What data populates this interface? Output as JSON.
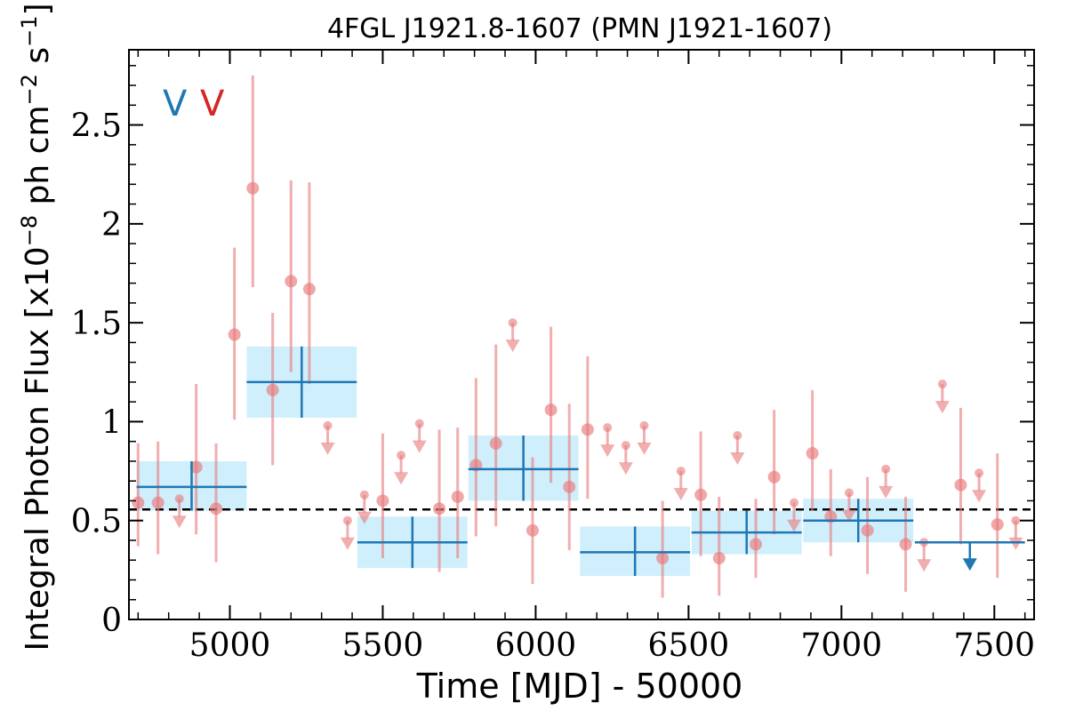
{
  "chart_data": {
    "type": "scatter",
    "title": "4FGL J1921.8-1607 (PMN J1921-1607)",
    "xlabel": "Time [MJD] - 50000",
    "ylabel_main": "Integral Photon Flux [x10",
    "ylabel_exp1": "−8",
    "ylabel_mid": " ph cm",
    "ylabel_exp2": "−2",
    "ylabel_s": " s",
    "ylabel_exp3": "−1",
    "ylabel_end": "]",
    "xlim": [
      4670,
      7630
    ],
    "ylim": [
      0,
      2.88
    ],
    "xticks": [
      {
        "value": 5000,
        "label": "5000"
      },
      {
        "value": 5500,
        "label": "5500"
      },
      {
        "value": 6000,
        "label": "6000"
      },
      {
        "value": 6500,
        "label": "6500"
      },
      {
        "value": 7000,
        "label": "7000"
      },
      {
        "value": 7500,
        "label": "7500"
      }
    ],
    "yticks": [
      {
        "value": 0,
        "label": "0"
      },
      {
        "value": 0.5,
        "label": "0.5"
      },
      {
        "value": 1,
        "label": "1"
      },
      {
        "value": 1.5,
        "label": "1.5"
      },
      {
        "value": 2,
        "label": "2"
      },
      {
        "value": 2.5,
        "label": "2.5"
      }
    ],
    "x_minor_step": 100,
    "y_minor_step": 0.1,
    "mean_flux": 0.556,
    "markers": [
      {
        "label": "V",
        "color": "#1f77b4"
      },
      {
        "label": "V",
        "color": "#d62728"
      }
    ],
    "colors": {
      "fine": "#e8787a",
      "coarse": "#1f77b4",
      "coarse_band": "#cdeefc",
      "mean_line": "#000000"
    },
    "series": [
      {
        "kind": "coarse",
        "points": [
          {
            "x": 4875,
            "xerr": 180,
            "y": 0.67,
            "ylo": 0.55,
            "yhi": 0.8,
            "ul": false
          },
          {
            "x": 5235,
            "xerr": 180,
            "y": 1.2,
            "ylo": 1.02,
            "yhi": 1.38,
            "ul": false
          },
          {
            "x": 5597,
            "xerr": 180,
            "y": 0.39,
            "ylo": 0.26,
            "yhi": 0.52,
            "ul": false
          },
          {
            "x": 5960,
            "xerr": 180,
            "y": 0.76,
            "ylo": 0.6,
            "yhi": 0.93,
            "ul": false
          },
          {
            "x": 6325,
            "xerr": 180,
            "y": 0.34,
            "ylo": 0.22,
            "yhi": 0.47,
            "ul": false
          },
          {
            "x": 6690,
            "xerr": 180,
            "y": 0.44,
            "ylo": 0.33,
            "yhi": 0.55,
            "ul": false
          },
          {
            "x": 7055,
            "xerr": 180,
            "y": 0.5,
            "ylo": 0.39,
            "yhi": 0.61,
            "ul": false
          },
          {
            "x": 7420,
            "xerr": 180,
            "y": 0.39,
            "ylo": null,
            "yhi": null,
            "ul": true
          }
        ]
      },
      {
        "kind": "fine",
        "points": [
          {
            "x": 4700,
            "y": 0.59,
            "ylo": 0.37,
            "yhi": 0.89,
            "ul": false
          },
          {
            "x": 4765,
            "y": 0.59,
            "ylo": 0.33,
            "yhi": 0.9,
            "ul": false
          },
          {
            "x": 4835,
            "y": 0.61,
            "ylo": null,
            "yhi": null,
            "ul": true
          },
          {
            "x": 4890,
            "y": 0.77,
            "ylo": 0.43,
            "yhi": 1.19,
            "ul": false
          },
          {
            "x": 4955,
            "y": 0.56,
            "ylo": 0.29,
            "yhi": 0.89,
            "ul": false
          },
          {
            "x": 5015,
            "y": 1.44,
            "ylo": 1.01,
            "yhi": 1.88,
            "ul": false
          },
          {
            "x": 5075,
            "y": 2.18,
            "ylo": 1.68,
            "yhi": 2.75,
            "ul": false
          },
          {
            "x": 5140,
            "y": 1.16,
            "ylo": 0.78,
            "yhi": 1.55,
            "ul": false
          },
          {
            "x": 5200,
            "y": 1.71,
            "ylo": 1.25,
            "yhi": 2.22,
            "ul": false
          },
          {
            "x": 5260,
            "y": 1.67,
            "ylo": 1.19,
            "yhi": 2.21,
            "ul": false
          },
          {
            "x": 5320,
            "y": 0.98,
            "ylo": null,
            "yhi": null,
            "ul": true
          },
          {
            "x": 5385,
            "y": 0.5,
            "ylo": null,
            "yhi": null,
            "ul": true
          },
          {
            "x": 5440,
            "y": 0.63,
            "ylo": null,
            "yhi": null,
            "ul": true
          },
          {
            "x": 5500,
            "y": 0.6,
            "ylo": 0.31,
            "yhi": 0.94,
            "ul": false
          },
          {
            "x": 5560,
            "y": 0.83,
            "ylo": null,
            "yhi": null,
            "ul": true
          },
          {
            "x": 5620,
            "y": 0.99,
            "ylo": null,
            "yhi": null,
            "ul": true
          },
          {
            "x": 5685,
            "y": 0.56,
            "ylo": 0.24,
            "yhi": 0.96,
            "ul": false
          },
          {
            "x": 5745,
            "y": 0.62,
            "ylo": 0.31,
            "yhi": 0.97,
            "ul": false
          },
          {
            "x": 5805,
            "y": 0.78,
            "ylo": 0.42,
            "yhi": 1.22,
            "ul": false
          },
          {
            "x": 5870,
            "y": 0.89,
            "ylo": 0.47,
            "yhi": 1.39,
            "ul": false
          },
          {
            "x": 5925,
            "y": 1.5,
            "ylo": null,
            "yhi": null,
            "ul": true
          },
          {
            "x": 5990,
            "y": 0.45,
            "ylo": 0.18,
            "yhi": 0.82,
            "ul": false
          },
          {
            "x": 6050,
            "y": 1.06,
            "ylo": 0.69,
            "yhi": 1.48,
            "ul": false
          },
          {
            "x": 6110,
            "y": 0.67,
            "ylo": 0.35,
            "yhi": 1.09,
            "ul": false
          },
          {
            "x": 6170,
            "y": 0.96,
            "ylo": 0.61,
            "yhi": 1.33,
            "ul": false
          },
          {
            "x": 6235,
            "y": 0.97,
            "ylo": null,
            "yhi": null,
            "ul": true
          },
          {
            "x": 6295,
            "y": 0.88,
            "ylo": null,
            "yhi": null,
            "ul": true
          },
          {
            "x": 6355,
            "y": 0.98,
            "ylo": null,
            "yhi": null,
            "ul": true
          },
          {
            "x": 6415,
            "y": 0.31,
            "ylo": 0.11,
            "yhi": 0.6,
            "ul": false
          },
          {
            "x": 6475,
            "y": 0.75,
            "ylo": null,
            "yhi": null,
            "ul": true
          },
          {
            "x": 6540,
            "y": 0.63,
            "ylo": 0.32,
            "yhi": 0.95,
            "ul": false
          },
          {
            "x": 6600,
            "y": 0.31,
            "ylo": 0.12,
            "yhi": 0.62,
            "ul": false
          },
          {
            "x": 6660,
            "y": 0.93,
            "ylo": null,
            "yhi": null,
            "ul": true
          },
          {
            "x": 6720,
            "y": 0.38,
            "ylo": 0.21,
            "yhi": 0.61,
            "ul": false
          },
          {
            "x": 6780,
            "y": 0.72,
            "ylo": 0.43,
            "yhi": 1.06,
            "ul": false
          },
          {
            "x": 6845,
            "y": 0.59,
            "ylo": null,
            "yhi": null,
            "ul": true
          },
          {
            "x": 6905,
            "y": 0.84,
            "ylo": 0.55,
            "yhi": 1.16,
            "ul": false
          },
          {
            "x": 6965,
            "y": 0.52,
            "ylo": 0.32,
            "yhi": 0.76,
            "ul": false
          },
          {
            "x": 7025,
            "y": 0.64,
            "ylo": null,
            "yhi": null,
            "ul": true
          },
          {
            "x": 7085,
            "y": 0.45,
            "ylo": 0.23,
            "yhi": 0.72,
            "ul": false
          },
          {
            "x": 7145,
            "y": 0.76,
            "ylo": null,
            "yhi": null,
            "ul": true
          },
          {
            "x": 7210,
            "y": 0.38,
            "ylo": 0.14,
            "yhi": 0.62,
            "ul": false
          },
          {
            "x": 7270,
            "y": 0.39,
            "ylo": null,
            "yhi": null,
            "ul": true
          },
          {
            "x": 7330,
            "y": 1.19,
            "ylo": null,
            "yhi": null,
            "ul": true
          },
          {
            "x": 7390,
            "y": 0.68,
            "ylo": 0.38,
            "yhi": 1.07,
            "ul": false
          },
          {
            "x": 7450,
            "y": 0.74,
            "ylo": null,
            "yhi": null,
            "ul": true
          },
          {
            "x": 7510,
            "y": 0.48,
            "ylo": 0.21,
            "yhi": 0.84,
            "ul": false
          },
          {
            "x": 7570,
            "y": 0.5,
            "ylo": null,
            "yhi": null,
            "ul": true
          }
        ]
      }
    ]
  }
}
